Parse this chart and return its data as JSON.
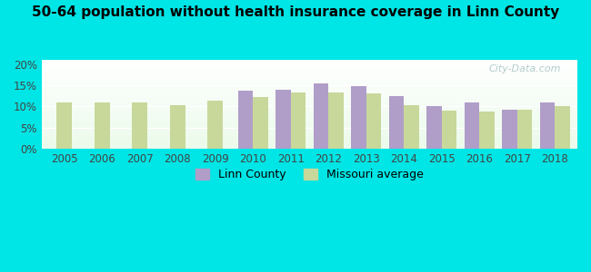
{
  "title": "50-64 population without health insurance coverage in Linn County",
  "years": [
    2005,
    2006,
    2007,
    2008,
    2009,
    2010,
    2011,
    2012,
    2013,
    2014,
    2015,
    2016,
    2017,
    2018
  ],
  "linn_county": [
    null,
    null,
    null,
    null,
    null,
    13.8,
    13.9,
    15.5,
    14.9,
    12.4,
    10.0,
    11.0,
    9.2,
    11.0
  ],
  "missouri_avg": [
    10.9,
    10.9,
    10.9,
    10.4,
    11.3,
    12.2,
    13.3,
    13.4,
    13.1,
    10.4,
    9.1,
    8.9,
    9.2,
    10.0
  ],
  "linn_color": "#b09ec9",
  "mo_color": "#c8d89a",
  "bg_color": "#00e5e5",
  "ylim": [
    0,
    21
  ],
  "yticks": [
    0,
    5,
    10,
    15,
    20
  ],
  "ytick_labels": [
    "0%",
    "5%",
    "10%",
    "15%",
    "20%"
  ],
  "bar_width": 0.4,
  "watermark": "City-Data.com",
  "legend_linn": "Linn County",
  "legend_mo": "Missouri average"
}
